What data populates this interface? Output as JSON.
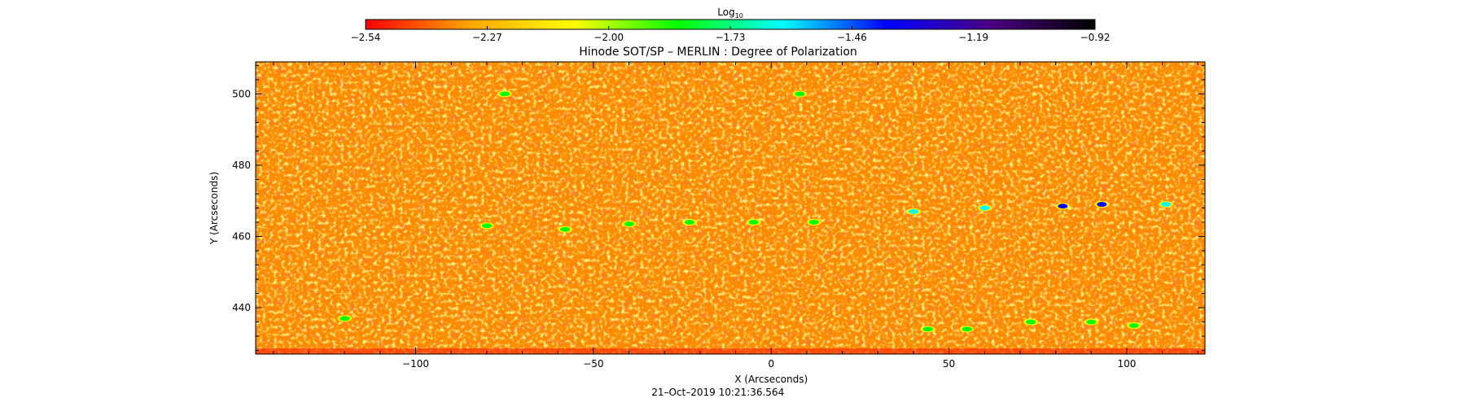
{
  "chart_data": {
    "type": "heatmap",
    "title": "Hinode SOT/SP – MERLIN : Degree of Polarization",
    "xlabel": "X (Arcseconds)",
    "ylabel": "Y (Arcseconds)",
    "timestamp": "21–Oct–2019  10:21:36.564",
    "xlim": [
      -145,
      122
    ],
    "ylim": [
      427,
      509
    ],
    "x_ticks": [
      -100,
      -50,
      0,
      50,
      100
    ],
    "x_tick_labels": [
      "−100",
      "−50",
      "0",
      "50",
      "100"
    ],
    "y_ticks": [
      440,
      460,
      480,
      500
    ],
    "y_tick_labels": [
      "440",
      "460",
      "480",
      "500"
    ],
    "colorbar": {
      "label_base": "Log",
      "label_sub": "10",
      "range": [
        -2.54,
        -0.92
      ],
      "tick_values": [
        -2.54,
        -2.27,
        -2.0,
        -1.73,
        -1.46,
        -1.19,
        -0.92
      ],
      "tick_labels": [
        "−2.54",
        "−2.27",
        "−2.00",
        "−1.73",
        "−1.46",
        "−1.19",
        "−0.92"
      ],
      "colors": [
        "#ff0000",
        "#ffa500",
        "#ffff00",
        "#00ff00",
        "#00ffff",
        "#0000ff",
        "#4b0082",
        "#000000"
      ]
    },
    "features": [
      {
        "x": -40,
        "y": 463.5,
        "value": -1.85
      },
      {
        "x": -23,
        "y": 464,
        "value": -1.8
      },
      {
        "x": -5,
        "y": 464,
        "value": -1.75
      },
      {
        "x": 12,
        "y": 464,
        "value": -1.78
      },
      {
        "x": -58,
        "y": 462,
        "value": -1.85
      },
      {
        "x": -80,
        "y": 463,
        "value": -1.9
      },
      {
        "x": 40,
        "y": 467,
        "value": -1.6
      },
      {
        "x": 60,
        "y": 468,
        "value": -1.5
      },
      {
        "x": 82,
        "y": 468.5,
        "value": -1.45
      },
      {
        "x": 93,
        "y": 469,
        "value": -1.4
      },
      {
        "x": 111,
        "y": 469,
        "value": -1.5
      },
      {
        "x": 44,
        "y": 434,
        "value": -1.8
      },
      {
        "x": 55,
        "y": 434,
        "value": -1.85
      },
      {
        "x": 73,
        "y": 436,
        "value": -1.8
      },
      {
        "x": 90,
        "y": 436,
        "value": -1.78
      },
      {
        "x": 102,
        "y": 435,
        "value": -1.8
      },
      {
        "x": -120,
        "y": 437,
        "value": -1.95
      },
      {
        "x": 8,
        "y": 500,
        "value": -1.95
      },
      {
        "x": -75,
        "y": 500,
        "value": -1.95
      }
    ]
  }
}
